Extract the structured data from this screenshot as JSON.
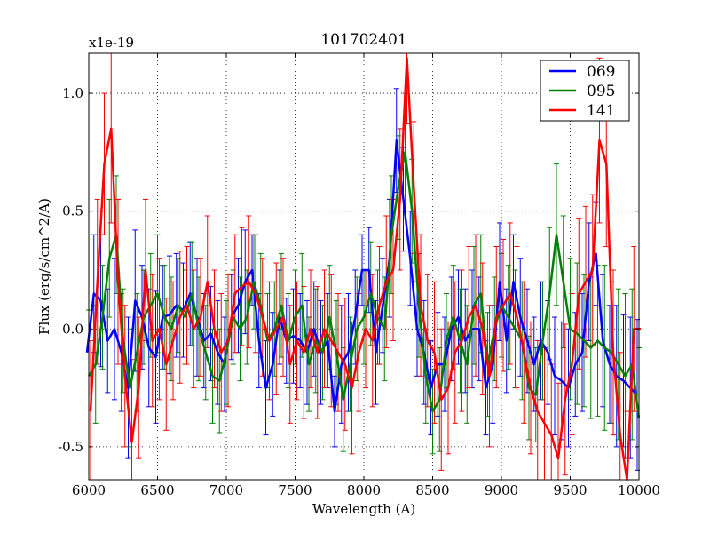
{
  "chart_data": {
    "type": "line",
    "title": "101702401",
    "xlabel": "Wavelength (A)",
    "ylabel": "Flux (erg/s/cm^2/A)",
    "offset_label": "x1e-19",
    "xlim": [
      6000,
      10000
    ],
    "ylim": [
      -0.64,
      1.17
    ],
    "grid": true,
    "legend_position": "top-right",
    "x_ticks": [
      6000,
      6500,
      7000,
      7500,
      8000,
      8500,
      9000,
      9500,
      10000
    ],
    "x_tick_labels": [
      "6000",
      "6500",
      "7000",
      "7500",
      "8000",
      "8500",
      "9000",
      "9500",
      "10000"
    ],
    "y_ticks": [
      -0.5,
      0.0,
      0.5,
      1.0
    ],
    "y_tick_labels": [
      "-0.5",
      "0.0",
      "0.5",
      "1.0"
    ],
    "series": [
      {
        "name": "069",
        "color": "#0000ff",
        "x": [
          6000,
          6050,
          6100,
          6150,
          6200,
          6250,
          6300,
          6350,
          6400,
          6450,
          6500,
          6550,
          6600,
          6650,
          6700,
          6750,
          6800,
          6850,
          6900,
          6950,
          7000,
          7050,
          7100,
          7150,
          7200,
          7250,
          7300,
          7350,
          7400,
          7450,
          7500,
          7550,
          7600,
          7650,
          7700,
          7750,
          7800,
          7850,
          7900,
          7950,
          8000,
          8050,
          8100,
          8150,
          8200,
          8250,
          8300,
          8350,
          8400,
          8450,
          8500,
          8550,
          8600,
          8650,
          8700,
          8750,
          8800,
          8850,
          8900,
          8950,
          9000,
          9050,
          9100,
          9150,
          9200,
          9250,
          9300,
          9350,
          9400,
          9450,
          9500,
          9550,
          9600,
          9650,
          9700,
          9750,
          9800,
          9850,
          9900,
          9950,
          10000
        ],
        "y": [
          -0.1,
          0.15,
          0.12,
          -0.05,
          0.0,
          -0.1,
          -0.25,
          0.12,
          0.05,
          -0.08,
          -0.12,
          0.05,
          0.06,
          0.1,
          0.08,
          0.15,
          0.05,
          -0.05,
          -0.02,
          -0.1,
          -0.15,
          0.05,
          0.1,
          0.2,
          0.25,
          -0.05,
          -0.25,
          -0.15,
          0.05,
          -0.05,
          -0.03,
          -0.05,
          -0.1,
          0.0,
          -0.1,
          -0.05,
          -0.35,
          -0.15,
          -0.1,
          0.05,
          0.25,
          0.25,
          -0.1,
          0.1,
          0.3,
          0.8,
          0.55,
          0.3,
          0.0,
          -0.1,
          -0.25,
          -0.15,
          -0.15,
          0.0,
          0.05,
          -0.05,
          0.0,
          0.0,
          -0.25,
          -0.15,
          0.2,
          -0.05,
          0.2,
          0.05,
          -0.05,
          -0.15,
          -0.05,
          -0.1,
          -0.2,
          -0.22,
          -0.25,
          -0.15,
          -0.1,
          0.2,
          0.32,
          -0.05,
          -0.15,
          -0.2,
          -0.22,
          -0.25,
          -0.28
        ],
        "err": [
          0.3,
          0.25,
          0.28,
          0.22,
          0.3,
          0.25,
          0.3,
          0.3,
          0.22,
          0.25,
          0.28,
          0.22,
          0.25,
          0.22,
          0.2,
          0.22,
          0.25,
          0.2,
          0.2,
          0.22,
          0.2,
          0.18,
          0.2,
          0.22,
          0.15,
          0.2,
          0.2,
          0.22,
          0.2,
          0.18,
          0.2,
          0.2,
          0.22,
          0.2,
          0.22,
          0.2,
          0.15,
          0.25,
          0.25,
          0.2,
          0.15,
          0.18,
          0.22,
          0.2,
          0.25,
          0.22,
          0.22,
          0.2,
          0.2,
          0.22,
          0.2,
          0.22,
          0.2,
          0.22,
          0.2,
          0.22,
          0.25,
          0.22,
          0.2,
          0.25,
          0.25,
          0.22,
          0.2,
          0.25,
          0.22,
          0.2,
          0.25,
          0.22,
          0.25,
          0.25,
          0.25,
          0.22,
          0.25,
          0.25,
          0.22,
          0.28,
          0.25,
          0.3,
          0.28,
          0.3,
          0.32
        ]
      },
      {
        "name": "095",
        "color": "#008000",
        "x": [
          6000,
          6050,
          6100,
          6150,
          6200,
          6250,
          6300,
          6350,
          6400,
          6450,
          6500,
          6550,
          6600,
          6650,
          6700,
          6750,
          6800,
          6850,
          6900,
          6950,
          7000,
          7050,
          7100,
          7150,
          7200,
          7250,
          7300,
          7350,
          7400,
          7450,
          7500,
          7550,
          7600,
          7650,
          7700,
          7750,
          7800,
          7850,
          7900,
          7950,
          8000,
          8050,
          8100,
          8150,
          8200,
          8250,
          8300,
          8350,
          8400,
          8450,
          8500,
          8550,
          8600,
          8650,
          8700,
          8750,
          8800,
          8850,
          8900,
          8950,
          9000,
          9050,
          9100,
          9150,
          9200,
          9250,
          9300,
          9350,
          9400,
          9450,
          9500,
          9550,
          9600,
          9650,
          9700,
          9750,
          9800,
          9850,
          9900,
          9950,
          10000
        ],
        "y": [
          -0.2,
          -0.15,
          0.05,
          0.3,
          0.4,
          -0.05,
          -0.25,
          -0.1,
          0.05,
          0.1,
          0.15,
          0.05,
          0.0,
          0.1,
          0.05,
          0.15,
          0.0,
          -0.1,
          -0.2,
          -0.22,
          -0.1,
          0.05,
          0.0,
          0.05,
          0.2,
          0.1,
          -0.05,
          0.0,
          0.1,
          -0.05,
          0.05,
          0.1,
          -0.15,
          -0.05,
          -0.1,
          0.05,
          -0.1,
          -0.3,
          -0.15,
          0.0,
          0.05,
          0.15,
          0.05,
          0.0,
          0.4,
          0.6,
          0.75,
          0.5,
          0.1,
          -0.2,
          -0.35,
          -0.3,
          -0.05,
          0.05,
          -0.05,
          -0.15,
          0.1,
          0.15,
          -0.15,
          0.0,
          0.1,
          0.05,
          0.0,
          -0.05,
          -0.25,
          -0.28,
          -0.05,
          0.15,
          0.4,
          0.2,
          0.0,
          -0.02,
          -0.05,
          -0.08,
          -0.05,
          -0.08,
          -0.1,
          -0.15,
          -0.2,
          -0.15,
          -0.38
        ],
        "err": [
          0.28,
          0.25,
          0.22,
          0.25,
          0.25,
          0.22,
          0.25,
          0.25,
          0.2,
          0.22,
          0.25,
          0.22,
          0.22,
          0.2,
          0.2,
          0.22,
          0.22,
          0.2,
          0.2,
          0.22,
          0.22,
          0.2,
          0.22,
          0.2,
          0.2,
          0.22,
          0.2,
          0.2,
          0.22,
          0.2,
          0.2,
          0.22,
          0.2,
          0.22,
          0.2,
          0.22,
          0.22,
          0.22,
          0.2,
          0.22,
          0.2,
          0.22,
          0.2,
          0.22,
          0.25,
          0.22,
          0.25,
          0.22,
          0.22,
          0.2,
          0.18,
          0.22,
          0.2,
          0.22,
          0.22,
          0.25,
          0.25,
          0.25,
          0.22,
          0.22,
          0.22,
          0.22,
          0.25,
          0.25,
          0.22,
          0.2,
          0.25,
          0.28,
          0.3,
          0.28,
          0.3,
          0.3,
          0.28,
          0.3,
          0.32,
          0.35,
          0.3,
          0.32,
          0.35,
          0.32,
          0.3
        ]
      },
      {
        "name": "141",
        "color": "#ff0000",
        "x": [
          6000,
          6050,
          6100,
          6150,
          6200,
          6250,
          6300,
          6350,
          6400,
          6450,
          6500,
          6550,
          6600,
          6650,
          6700,
          6750,
          6800,
          6850,
          6900,
          6950,
          7000,
          7050,
          7100,
          7150,
          7200,
          7250,
          7300,
          7350,
          7400,
          7450,
          7500,
          7550,
          7600,
          7650,
          7700,
          7750,
          7800,
          7850,
          7900,
          7950,
          8000,
          8050,
          8100,
          8150,
          8200,
          8250,
          8300,
          8350,
          8400,
          8450,
          8500,
          8550,
          8600,
          8650,
          8700,
          8750,
          8800,
          8850,
          8900,
          8950,
          9000,
          9050,
          9100,
          9150,
          9200,
          9250,
          9300,
          9350,
          9400,
          9450,
          9500,
          9550,
          9600,
          9650,
          9700,
          9750,
          9800,
          9850,
          9900,
          9950,
          10000
        ],
        "y": [
          -0.35,
          0.2,
          0.7,
          0.85,
          0.2,
          -0.2,
          -0.48,
          -0.25,
          0.25,
          -0.05,
          0.0,
          -0.15,
          -0.05,
          0.05,
          0.1,
          0.0,
          0.05,
          0.2,
          0.0,
          -0.1,
          -0.05,
          0.15,
          0.18,
          0.2,
          0.15,
          0.05,
          -0.05,
          0.0,
          0.05,
          -0.15,
          -0.05,
          -0.1,
          0.0,
          -0.1,
          0.0,
          -0.05,
          -0.1,
          -0.15,
          -0.25,
          -0.1,
          0.0,
          -0.05,
          0.1,
          0.2,
          0.25,
          0.55,
          1.15,
          0.6,
          0.1,
          -0.05,
          -0.1,
          -0.3,
          -0.25,
          -0.1,
          -0.05,
          0.05,
          0.1,
          0.0,
          -0.2,
          0.05,
          0.1,
          0.15,
          0.05,
          -0.1,
          -0.25,
          -0.35,
          -0.4,
          -0.45,
          -0.55,
          -0.3,
          -0.15,
          0.15,
          0.2,
          0.25,
          0.8,
          0.7,
          -0.1,
          -0.45,
          -0.7,
          0.0,
          0.0
        ],
        "err": [
          0.3,
          0.35,
          0.3,
          0.4,
          0.35,
          0.3,
          0.35,
          0.3,
          0.3,
          0.28,
          0.3,
          0.28,
          0.25,
          0.28,
          0.25,
          0.25,
          0.25,
          0.28,
          0.25,
          0.25,
          0.28,
          0.25,
          0.25,
          0.28,
          0.25,
          0.25,
          0.25,
          0.28,
          0.25,
          0.25,
          0.25,
          0.28,
          0.25,
          0.28,
          0.25,
          0.28,
          0.25,
          0.28,
          0.28,
          0.25,
          0.25,
          0.28,
          0.25,
          0.28,
          0.3,
          0.3,
          0.28,
          0.28,
          0.3,
          0.28,
          0.3,
          0.3,
          0.28,
          0.3,
          0.3,
          0.3,
          0.3,
          0.28,
          0.3,
          0.3,
          0.28,
          0.3,
          0.3,
          0.3,
          0.28,
          0.3,
          0.32,
          0.3,
          0.32,
          0.32,
          0.3,
          0.32,
          0.32,
          0.32,
          0.35,
          0.35,
          0.35,
          0.35,
          0.35,
          0.35,
          0.35
        ]
      }
    ]
  }
}
